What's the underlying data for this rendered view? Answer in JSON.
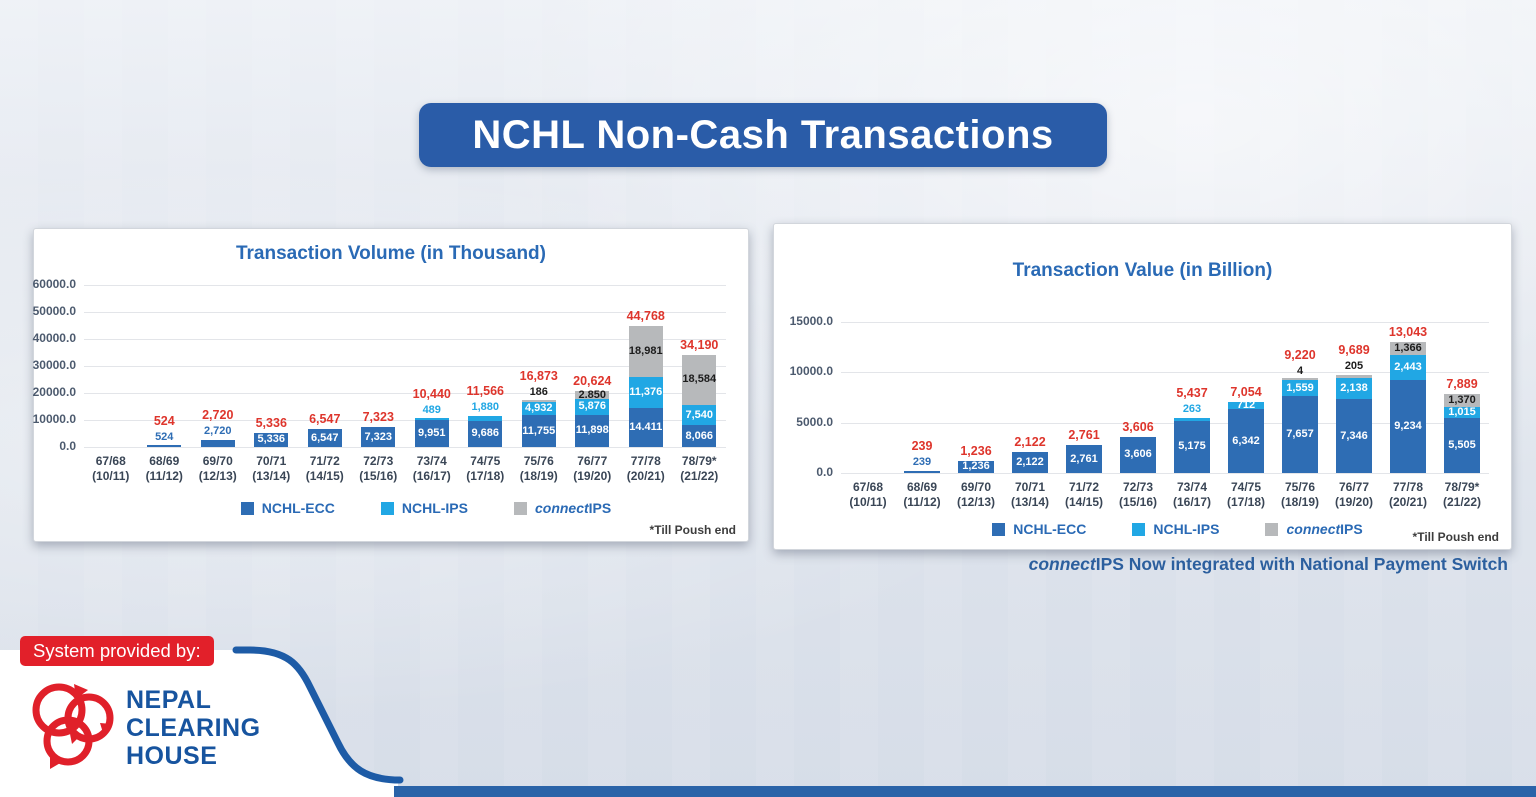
{
  "banner": {
    "title": "NCHL Non-Cash Transactions"
  },
  "caption": {
    "italic": "connect",
    "rest": "IPS Now integrated with National Payment Switch"
  },
  "footer": {
    "badge": "System provided by:",
    "org_lines": [
      "NEPAL",
      "CLEARING",
      "HOUSE"
    ]
  },
  "colors": {
    "banner_bg": "#2a5ca8",
    "title_blue": "#2a6ab5",
    "accent_red": "#de352c",
    "ecc_blue": "#2e6db4",
    "ips_blue": "#21a7e4",
    "cips_gray": "#b7b9bb",
    "swoosh_blue": "#1d5ba6",
    "bottom_bar_blue": "#2a63a8",
    "logo_red": "#e0202a",
    "org_blue": "#17549f",
    "badge_red": "#e2202a"
  },
  "chart_data": [
    {
      "type": "bar",
      "stacked": true,
      "title": "Transaction Volume (in Thousand)",
      "categories": [
        [
          "67/68",
          "(10/11)"
        ],
        [
          "68/69",
          "(11/12)"
        ],
        [
          "69/70",
          "(12/13)"
        ],
        [
          "70/71",
          "(13/14)"
        ],
        [
          "71/72",
          "(14/15)"
        ],
        [
          "72/73",
          "(15/16)"
        ],
        [
          "73/74",
          "(16/17)"
        ],
        [
          "74/75",
          "(17/18)"
        ],
        [
          "75/76",
          "(18/19)"
        ],
        [
          "76/77",
          "(19/20)"
        ],
        [
          "77/78",
          "(20/21)"
        ],
        [
          "78/79*",
          "(21/22)"
        ]
      ],
      "ylim": [
        0,
        60000
      ],
      "yticks": [
        "0.0",
        "10000.0",
        "20000.0",
        "30000.0",
        "40000.0",
        "50000.0",
        "60000.0"
      ],
      "grid": true,
      "legend_position": "bottom",
      "footnote": "*Till Poush end",
      "series": [
        {
          "name": "NCHL-ECC",
          "legend": {
            "italic": "",
            "text": "NCHL-ECC"
          },
          "color": "#2e6db4",
          "in_color": "#ffffff",
          "above_color": "#2e6db4",
          "values": [
            null,
            524,
            2720,
            5336,
            6547,
            7323,
            9951,
            9686,
            11755,
            11898,
            14411,
            8066
          ],
          "labels": [
            "",
            "524",
            "2,720",
            "5,336",
            "6,547",
            "7,323",
            "9,951",
            "9,686",
            "11,755",
            "11,898",
            "14.411",
            "8,066"
          ],
          "label_pos": [
            null,
            "above",
            "above",
            "in",
            "in",
            "in",
            "in",
            "in",
            "in",
            "in",
            "in",
            "in"
          ]
        },
        {
          "name": "NCHL-IPS",
          "legend": {
            "italic": "",
            "text": "NCHL-IPS"
          },
          "color": "#21a7e4",
          "in_color": "#ffffff",
          "above_color": "#21a7e4",
          "values": [
            null,
            null,
            null,
            null,
            null,
            null,
            489,
            1880,
            4932,
            5876,
            11376,
            7540
          ],
          "labels": [
            "",
            "",
            "",
            "",
            "",
            "",
            "489",
            "1,880",
            "4,932",
            "5,876",
            "11,376",
            "7,540"
          ],
          "label_pos": [
            null,
            null,
            null,
            null,
            null,
            null,
            "above",
            "above",
            "in",
            "in",
            "in",
            "in"
          ]
        },
        {
          "name": "connectIPS",
          "legend": {
            "italic": "connect",
            "text": "IPS"
          },
          "color": "#b7b9bb",
          "in_color": "#1c1c1c",
          "above_color": "#1c1c1c",
          "values": [
            null,
            null,
            null,
            null,
            null,
            null,
            null,
            null,
            186,
            2850,
            18981,
            18584
          ],
          "labels": [
            "",
            "",
            "",
            "",
            "",
            "",
            "",
            "",
            "186",
            "2.850",
            "18,981",
            "18,584"
          ],
          "label_pos": [
            null,
            null,
            null,
            null,
            null,
            null,
            null,
            null,
            "above",
            "in",
            "in",
            "in"
          ]
        }
      ],
      "totals": {
        "color": "#de352c",
        "values": [
          null,
          524,
          2720,
          5336,
          6547,
          7323,
          10440,
          11566,
          16873,
          20624,
          44768,
          34190
        ],
        "labels": [
          "",
          "524",
          "2,720",
          "5,336",
          "6,547",
          "7,323",
          "10,440",
          "11,566",
          "16,873",
          "20,624",
          "44,768",
          "34,190"
        ]
      }
    },
    {
      "type": "bar",
      "stacked": true,
      "title": "Transaction Value (in Billion)",
      "categories": [
        [
          "67/68",
          "(10/11)"
        ],
        [
          "68/69",
          "(11/12)"
        ],
        [
          "69/70",
          "(12/13)"
        ],
        [
          "70/71",
          "(13/14)"
        ],
        [
          "71/72",
          "(14/15)"
        ],
        [
          "72/73",
          "(15/16)"
        ],
        [
          "73/74",
          "(16/17)"
        ],
        [
          "74/75",
          "(17/18)"
        ],
        [
          "75/76",
          "(18/19)"
        ],
        [
          "76/77",
          "(19/20)"
        ],
        [
          "77/78",
          "(20/21)"
        ],
        [
          "78/79*",
          "(21/22)"
        ]
      ],
      "ylim": [
        0,
        15000
      ],
      "yticks": [
        "0.0",
        "5000.0",
        "10000.0",
        "15000.0"
      ],
      "grid": true,
      "legend_position": "bottom",
      "footnote": "*Till Poush end",
      "series": [
        {
          "name": "NCHL-ECC",
          "legend": {
            "italic": "",
            "text": "NCHL-ECC"
          },
          "color": "#2e6db4",
          "in_color": "#ffffff",
          "above_color": "#2e6db4",
          "values": [
            null,
            239,
            1236,
            2122,
            2761,
            3606,
            5175,
            6342,
            7657,
            7346,
            9234,
            5505
          ],
          "labels": [
            "",
            "239",
            "1,236",
            "2,122",
            "2,761",
            "3,606",
            "5,175",
            "6,342",
            "7,657",
            "7,346",
            "9,234",
            "5,505"
          ],
          "label_pos": [
            null,
            "above",
            "in",
            "in",
            "in",
            "in",
            "in",
            "in",
            "in",
            "in",
            "in",
            "in"
          ]
        },
        {
          "name": "NCHL-IPS",
          "legend": {
            "italic": "",
            "text": "NCHL-IPS"
          },
          "color": "#21a7e4",
          "in_color": "#ffffff",
          "above_color": "#21a7e4",
          "values": [
            null,
            null,
            null,
            null,
            null,
            null,
            263,
            712,
            1559,
            2138,
            2443,
            1015
          ],
          "labels": [
            "",
            "",
            "",
            "",
            "",
            "",
            "263",
            "712",
            "1,559",
            "2,138",
            "2,443",
            "1,015"
          ],
          "label_pos": [
            null,
            null,
            null,
            null,
            null,
            null,
            "above",
            "in",
            "in",
            "in",
            "in",
            "in"
          ]
        },
        {
          "name": "connectIPS",
          "legend": {
            "italic": "connect",
            "text": "IPS"
          },
          "color": "#b7b9bb",
          "in_color": "#1c1c1c",
          "above_color": "#1c1c1c",
          "values": [
            null,
            null,
            null,
            null,
            null,
            null,
            null,
            null,
            4,
            205,
            1366,
            1370
          ],
          "labels": [
            "",
            "",
            "",
            "",
            "",
            "",
            "",
            "",
            "4",
            "205",
            "1,366",
            "1,370"
          ],
          "label_pos": [
            null,
            null,
            null,
            null,
            null,
            null,
            null,
            null,
            "above",
            "above",
            "in",
            "in"
          ]
        }
      ],
      "totals": {
        "color": "#de352c",
        "values": [
          null,
          239,
          1236,
          2122,
          2761,
          3606,
          5437,
          7054,
          9220,
          9689,
          13043,
          7889
        ],
        "labels": [
          "",
          "239",
          "1,236",
          "2,122",
          "2,761",
          "3,606",
          "5,437",
          "7,054",
          "9,220",
          "9,689",
          "13,043",
          "7,889"
        ]
      }
    }
  ]
}
